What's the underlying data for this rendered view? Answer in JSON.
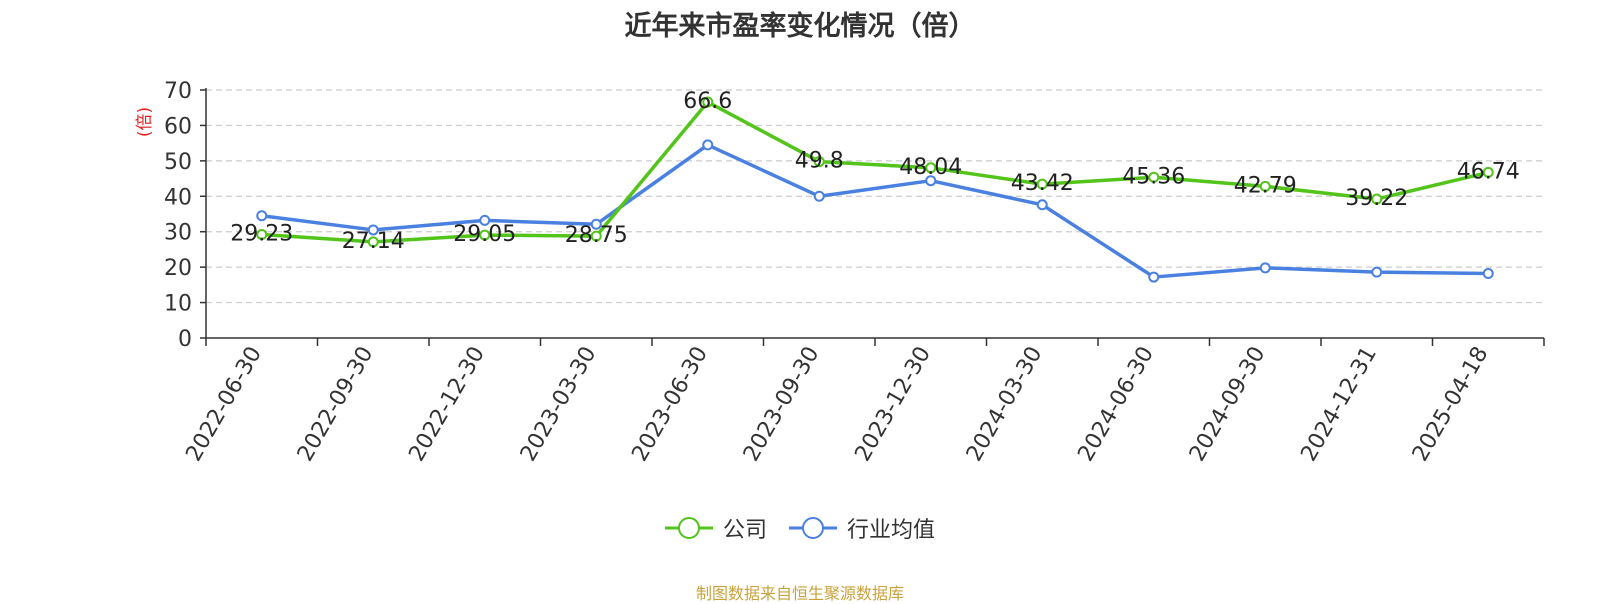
{
  "chart_data": {
    "type": "line",
    "title": "近年来市盈率变化情况（倍）",
    "ylabel": "(倍)",
    "xlabel": "",
    "ylim": [
      0,
      70
    ],
    "yticks": [
      0,
      10,
      20,
      30,
      40,
      50,
      60,
      70
    ],
    "grid": true,
    "legend_position": "bottom",
    "categories": [
      "2022-06-30",
      "2022-09-30",
      "2022-12-30",
      "2023-03-30",
      "2023-06-30",
      "2023-09-30",
      "2023-12-30",
      "2024-03-30",
      "2024-06-30",
      "2024-09-30",
      "2024-12-31",
      "2025-04-18"
    ],
    "series": [
      {
        "name": "公司",
        "color": "#52c41a",
        "values": [
          29.23,
          27.14,
          29.05,
          28.75,
          66.6,
          49.8,
          48.04,
          43.42,
          45.36,
          42.79,
          39.22,
          46.74
        ],
        "labels": [
          "29.23",
          "27.14",
          "29.05",
          "28.75",
          "66.6",
          "49.8",
          "48.04",
          "43.42",
          "45.36",
          "42.79",
          "39.22",
          "46.74"
        ]
      },
      {
        "name": "行业均值",
        "color": "#4a80e0",
        "values": [
          34.5,
          30.5,
          33.2,
          32.1,
          54.5,
          40.0,
          44.4,
          37.6,
          17.2,
          19.8,
          18.6,
          18.2
        ]
      }
    ]
  },
  "source": "制图数据来自恒生聚源数据库"
}
